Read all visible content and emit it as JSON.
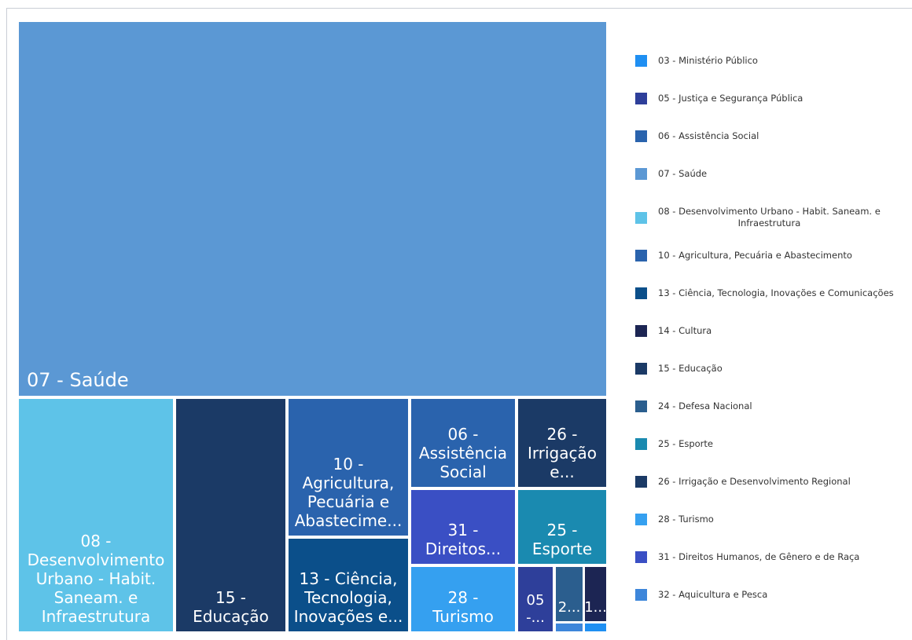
{
  "chart_data": {
    "type": "treemap",
    "title": "",
    "items": [
      {
        "label": "07 - Saúde",
        "tile_lines": [
          "07 - Saúde"
        ],
        "value": 49.1,
        "color": "#5b98d4"
      },
      {
        "label": "08 - Desenvolvimento Urbano - Habit. Saneam. e Infraestrutura",
        "tile_lines": [
          "08 -",
          "Desenvolvimento",
          "Urbano - Habit.",
          "Saneam. e",
          "Infraestrutura"
        ],
        "value": 8.8,
        "color": "#5ec3e8"
      },
      {
        "label": "15 - Educação",
        "tile_lines": [
          "15 -",
          "Educação"
        ],
        "value": 6.3,
        "color": "#1b3a66"
      },
      {
        "label": "10 - Agricultura, Pecuária e Abastecimento",
        "tile_lines": [
          "10 -",
          "Agricultura,",
          "Pecuária e",
          "Abastecime..."
        ],
        "value": 3.9,
        "color": "#2a63ad"
      },
      {
        "label": "13 - Ciência, Tecnologia, Inovações e Comunicações",
        "tile_lines": [
          "13 - Ciência,",
          "Tecnologia,",
          "Inovações e..."
        ],
        "value": 2.8,
        "color": "#0b4f8a"
      },
      {
        "label": "06 - Assistência Social",
        "tile_lines": [
          "06 -",
          "Assistência",
          "Social"
        ],
        "value": 2.1,
        "color": "#2a63ad"
      },
      {
        "label": "31 - Direitos Humanos, de Gênero e de Raça",
        "tile_lines": [
          "31 -",
          "Direitos..."
        ],
        "value": 1.6,
        "color": "#3a4fc4"
      },
      {
        "label": "28 - Turismo",
        "tile_lines": [
          "28 -",
          "Turismo"
        ],
        "value": 1.6,
        "color": "#35a0f0"
      },
      {
        "label": "26 - Irrigação e Desenvolvimento Regional",
        "tile_lines": [
          "26 -",
          "Irrigação",
          "e..."
        ],
        "value": 1.6,
        "color": "#1b3a66"
      },
      {
        "label": "25 - Esporte",
        "tile_lines": [
          "25 -",
          "Esporte"
        ],
        "value": 1.5,
        "color": "#1a8ab0"
      },
      {
        "label": "05 - Justiça e Segurança Pública",
        "tile_lines": [
          "05",
          "-..."
        ],
        "value": 0.8,
        "color": "#2e3f9a"
      },
      {
        "label": "24 - Defesa Nacional",
        "tile_lines": [
          "2..."
        ],
        "value": 0.35,
        "color": "#2b5e8e"
      },
      {
        "label": "14 - Cultura",
        "tile_lines": [
          "1..."
        ],
        "value": 0.3,
        "color": "#1c2553"
      },
      {
        "label": "32 - Aquicultura e Pesca",
        "tile_lines": [],
        "value": 0.08,
        "color": "#3d86da"
      },
      {
        "label": "03 - Ministério Público",
        "tile_lines": [],
        "value": 0.06,
        "color": "#1f8ff2"
      }
    ],
    "legend": {
      "placement": "right",
      "entries": [
        {
          "label": "03 - Ministério Público",
          "color": "#1f8ff2"
        },
        {
          "label": "05 - Justiça e Segurança Pública",
          "color": "#2e3f9a"
        },
        {
          "label": "06 - Assistência Social",
          "color": "#2a63ad"
        },
        {
          "label": "07 - Saúde",
          "color": "#5b98d4"
        },
        {
          "label": "08 - Desenvolvimento Urbano - Habit. Saneam. e Infraestrutura",
          "lines": [
            "08 - Desenvolvimento Urbano - Habit. Saneam. e",
            "Infraestrutura"
          ],
          "color": "#5ec3e8"
        },
        {
          "label": "10 - Agricultura, Pecuária e Abastecimento",
          "color": "#2a63ad"
        },
        {
          "label": "13 - Ciência, Tecnologia, Inovações e Comunicações",
          "color": "#0b4f8a"
        },
        {
          "label": "14 - Cultura",
          "color": "#1c2553"
        },
        {
          "label": "15 - Educação",
          "color": "#1b3a66"
        },
        {
          "label": "24 - Defesa Nacional",
          "color": "#2b5e8e"
        },
        {
          "label": "25 - Esporte",
          "color": "#1a8ab0"
        },
        {
          "label": "26 - Irrigação e Desenvolvimento Regional",
          "color": "#1b3a66"
        },
        {
          "label": "28 - Turismo",
          "color": "#35a0f0"
        },
        {
          "label": "31 - Direitos Humanos, de Gênero e de Raça",
          "color": "#3a4fc4"
        },
        {
          "label": "32 - Aquicultura e Pesca",
          "color": "#3d86da"
        }
      ]
    }
  }
}
